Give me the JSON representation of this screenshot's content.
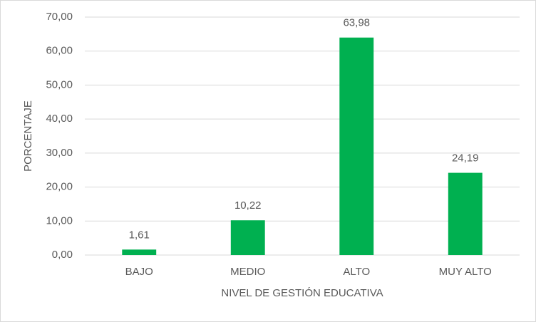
{
  "chart_data": {
    "type": "bar",
    "x_label": "NIVEL DE GESTIÓN EDUCATIVA",
    "y_label": "PORCENTAJE",
    "categories": [
      "BAJO",
      "MEDIO",
      "ALTO",
      "MUY ALTO"
    ],
    "values": [
      1.61,
      10.22,
      63.98,
      24.19
    ],
    "value_labels": [
      "1,61",
      "10,22",
      "63,98",
      "24,19"
    ],
    "color": "#00b050",
    "ylim": [
      0,
      70
    ],
    "yticks": [
      {
        "value": 0,
        "label": "0,00"
      },
      {
        "value": 10,
        "label": "10,00"
      },
      {
        "value": 20,
        "label": "20,00"
      },
      {
        "value": 30,
        "label": "30,00"
      },
      {
        "value": 40,
        "label": "40,00"
      },
      {
        "value": 50,
        "label": "50,00"
      },
      {
        "value": 60,
        "label": "60,00"
      },
      {
        "value": 70,
        "label": "70,00"
      }
    ],
    "grid": true
  }
}
